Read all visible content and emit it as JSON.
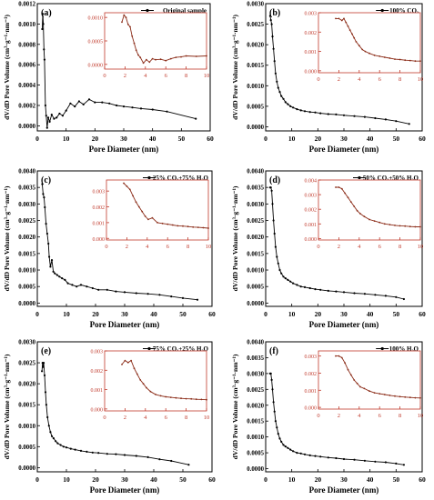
{
  "figure": {
    "shared_xlabel": "Pore Diameter (nm)",
    "shared_ylabel": "dV/dD Pore Volume (cm³·g⁻¹·nm⁻¹)"
  },
  "colors": {
    "main_series": "#000000",
    "inset_series": "#8b2c18",
    "inset_axes": "#c0392b"
  },
  "chart_data": [
    {
      "type": "line",
      "panel": "(a)",
      "legend": "Original sample",
      "legend_position": "top-right",
      "xlabel": "Pore Diameter (nm)",
      "ylabel": "dV/dD Pore Volume (cm³·g⁻¹·nm⁻¹)",
      "xlim": [
        0,
        60
      ],
      "ylim": [
        -5e-05,
        0.0012
      ],
      "xticks": [
        0,
        10,
        20,
        30,
        40,
        50,
        60
      ],
      "yticks": [
        0.0,
        0.0002,
        0.0004,
        0.0006,
        0.0008,
        0.001,
        0.0012
      ],
      "ytick_labels": [
        "0.0000",
        "0.0002",
        "0.0004",
        "0.0006",
        "0.0008",
        "0.0010",
        "0.0012"
      ],
      "series": [
        {
          "x": [
            1.7,
            1.9,
            2.1,
            2.3,
            2.5,
            2.8,
            3.1,
            3.4,
            3.8,
            4.3,
            5,
            5.8,
            6.7,
            7.7,
            8.8,
            10,
            11.5,
            13,
            14.5,
            16,
            18,
            20,
            22.5,
            25,
            27.5,
            30,
            33,
            36,
            40,
            45,
            55
          ],
          "y": [
            0.00095,
            0.0011,
            0.001,
            0.00075,
            0.00065,
            0.0002,
            0.0001,
            -2e-05,
            8e-05,
            4e-05,
            0.00011,
            7e-05,
            8e-05,
            0.00012,
            0.0001,
            0.00015,
            0.00022,
            0.00019,
            0.00024,
            0.00021,
            0.00026,
            0.00023,
            0.00023,
            0.00022,
            0.0002,
            0.00019,
            0.00018,
            0.00017,
            0.00016,
            0.00014,
            7e-05
          ]
        }
      ],
      "inset": {
        "xlim": [
          0,
          10
        ],
        "ylim": [
          -0.0001,
          0.0011
        ],
        "xticks": [
          0,
          2,
          4,
          6,
          8,
          10
        ],
        "yticks": [
          0.0,
          0.0005,
          0.001
        ],
        "ytick_labels": [
          "0.0000",
          "0.0005",
          "0.0010"
        ],
        "x": [
          1.7,
          1.9,
          2.1,
          2.3,
          2.5,
          2.7,
          2.9,
          3.1,
          3.3,
          3.5,
          3.8,
          4.1,
          4.4,
          4.7,
          5.0,
          5.5,
          6.0,
          6.5,
          7.0,
          7.5,
          8.0,
          9.0,
          10.0
        ],
        "y": [
          0.0009,
          0.00105,
          0.001,
          0.00085,
          0.0008,
          0.0006,
          0.00045,
          0.0003,
          0.0002,
          0.00015,
          3e-05,
          0.0001,
          5e-05,
          0.00012,
          0.0001,
          0.00011,
          8e-05,
          0.00012,
          0.00015,
          0.00016,
          0.00018,
          0.00017,
          0.00018
        ]
      }
    },
    {
      "type": "line",
      "panel": "(b)",
      "legend": "100% CO₂",
      "legend_position": "top-right",
      "xlabel": "Pore Diameter (nm)",
      "ylabel": "dV/dD Pore Volume (cm³·g⁻¹·nm⁻¹)",
      "xlim": [
        0,
        60
      ],
      "ylim": [
        -0.0001,
        0.003
      ],
      "xticks": [
        0,
        10,
        20,
        30,
        40,
        50,
        60
      ],
      "yticks": [
        0.0,
        0.0005,
        0.001,
        0.0015,
        0.002,
        0.0025,
        0.003
      ],
      "ytick_labels": [
        "0.0000",
        "0.0005",
        "0.0010",
        "0.0015",
        "0.0020",
        "0.0025",
        "0.0030"
      ],
      "series": [
        {
          "x": [
            1.7,
            2.0,
            2.3,
            2.6,
            3.0,
            3.4,
            3.8,
            4.3,
            4.8,
            5.4,
            6.0,
            6.8,
            7.6,
            8.5,
            9.5,
            10.5,
            12,
            13.5,
            15,
            17,
            19,
            21,
            24,
            27,
            30,
            34,
            38,
            42,
            46,
            50,
            55
          ],
          "y": [
            0.0027,
            0.0026,
            0.0025,
            0.0022,
            0.0019,
            0.0016,
            0.0013,
            0.0011,
            0.00095,
            0.00085,
            0.00075,
            0.00068,
            0.0006,
            0.00055,
            0.0005,
            0.00047,
            0.00043,
            0.0004,
            0.00038,
            0.00036,
            0.00035,
            0.00033,
            0.00031,
            0.0003,
            0.00028,
            0.00026,
            0.00024,
            0.00021,
            0.00018,
            0.00014,
            7e-05
          ]
        }
      ],
      "inset": {
        "xlim": [
          0,
          10
        ],
        "ylim": [
          -0.0001,
          0.003
        ],
        "xticks": [
          0,
          2,
          4,
          6,
          8,
          10
        ],
        "yticks": [
          0.0,
          0.001,
          0.002,
          0.003
        ],
        "ytick_labels": [
          "0.000",
          "0.001",
          "0.002",
          "0.003"
        ],
        "x": [
          1.7,
          2.0,
          2.3,
          2.5,
          2.7,
          2.9,
          3.1,
          3.3,
          3.5,
          3.7,
          4.0,
          4.3,
          4.6,
          5.0,
          5.5,
          6.0,
          6.5,
          7.0,
          7.5,
          8.0,
          8.5,
          9.0,
          9.5,
          10.0
        ],
        "y": [
          0.0027,
          0.0027,
          0.0026,
          0.0027,
          0.0025,
          0.0023,
          0.0021,
          0.0019,
          0.0017,
          0.0015,
          0.0013,
          0.0011,
          0.001,
          0.0009,
          0.0008,
          0.00075,
          0.0007,
          0.00065,
          0.0006,
          0.00058,
          0.00055,
          0.00053,
          0.0005,
          0.0005
        ]
      }
    },
    {
      "type": "line",
      "panel": "(c)",
      "legend": "25% CO₂+75% H₂O",
      "legend_position": "top-right",
      "xlabel": "Pore Diameter (nm)",
      "ylabel": "dV/dD Pore Volume (cm³·g⁻¹·nm⁻¹)",
      "xlim": [
        0,
        60
      ],
      "ylim": [
        -0.0001,
        0.004
      ],
      "xticks": [
        0,
        10,
        20,
        30,
        40,
        50,
        60
      ],
      "yticks": [
        0.0,
        0.0005,
        0.001,
        0.0015,
        0.002,
        0.0025,
        0.003,
        0.0035,
        0.004
      ],
      "ytick_labels": [
        "0.0000",
        "0.0005",
        "0.0010",
        "0.0015",
        "0.0020",
        "0.0025",
        "0.0030",
        "0.0035",
        "0.0040"
      ],
      "series": [
        {
          "x": [
            1.7,
            2.0,
            2.3,
            2.6,
            3.0,
            3.4,
            3.8,
            4.1,
            4.5,
            5.0,
            5.5,
            6.0,
            6.8,
            7.6,
            8.5,
            9.5,
            10.5,
            12,
            13.5,
            15,
            17,
            19,
            21,
            24,
            27,
            30,
            34,
            38,
            42,
            46,
            50,
            55
          ],
          "y": [
            0.0036,
            0.0033,
            0.0032,
            0.0029,
            0.0024,
            0.0021,
            0.0018,
            0.0014,
            0.0011,
            0.0013,
            0.00095,
            0.0009,
            0.00085,
            0.0008,
            0.00075,
            0.0007,
            0.0006,
            0.00055,
            0.0005,
            0.00055,
            0.0005,
            0.00045,
            0.0004,
            0.0004,
            0.00035,
            0.00033,
            0.0003,
            0.00028,
            0.00025,
            0.0002,
            0.00015,
            0.0001
          ]
        }
      ],
      "inset": {
        "xlim": [
          0,
          10
        ],
        "ylim": [
          -0.0001,
          0.0037
        ],
        "xticks": [
          0,
          2,
          4,
          6,
          8,
          10
        ],
        "yticks": [
          0.0,
          0.001,
          0.002,
          0.003
        ],
        "ytick_labels": [
          "0.000",
          "0.001",
          "0.002",
          "0.003"
        ],
        "x": [
          1.7,
          2.0,
          2.3,
          2.6,
          2.9,
          3.2,
          3.5,
          3.8,
          4.1,
          4.5,
          5.0,
          5.5,
          6.0,
          6.5,
          7.0,
          7.5,
          8.0,
          8.5,
          9.0,
          9.5,
          10.0
        ],
        "y": [
          0.0035,
          0.0033,
          0.0031,
          0.0027,
          0.0023,
          0.002,
          0.0017,
          0.0014,
          0.0012,
          0.0013,
          0.001,
          0.00095,
          0.0009,
          0.00085,
          0.0008,
          0.00078,
          0.00075,
          0.00072,
          0.0007,
          0.00068,
          0.00065
        ]
      }
    },
    {
      "type": "line",
      "panel": "(d)",
      "legend": "50% CO₂+50% H₂O",
      "legend_position": "top-right",
      "xlabel": "Pore Diameter (nm)",
      "ylabel": "dV/dD Pore Volume (cm³·g⁻¹·nm⁻¹)",
      "xlim": [
        0,
        60
      ],
      "ylim": [
        -0.0001,
        0.004
      ],
      "xticks": [
        0,
        10,
        20,
        30,
        40,
        50,
        60
      ],
      "yticks": [
        0.0,
        0.0005,
        0.001,
        0.0015,
        0.002,
        0.0025,
        0.003,
        0.0035,
        0.004
      ],
      "ytick_labels": [
        "0.0000",
        "0.0005",
        "0.0010",
        "0.0015",
        "0.0020",
        "0.0025",
        "0.0030",
        "0.0035",
        "0.0040"
      ],
      "series": [
        {
          "x": [
            1.7,
            2.0,
            2.3,
            2.6,
            3.0,
            3.4,
            3.8,
            4.3,
            4.8,
            5.4,
            6.0,
            6.8,
            7.6,
            8.5,
            9.5,
            10.5,
            12,
            13.5,
            15,
            17,
            19,
            21,
            24,
            27,
            30,
            34,
            38,
            42,
            46,
            50,
            53
          ],
          "y": [
            0.0035,
            0.0035,
            0.0034,
            0.003,
            0.0025,
            0.0021,
            0.0017,
            0.0014,
            0.0012,
            0.001,
            0.0009,
            0.0008,
            0.00075,
            0.0007,
            0.00065,
            0.0006,
            0.00055,
            0.0005,
            0.00048,
            0.00045,
            0.00042,
            0.0004,
            0.00037,
            0.00035,
            0.00033,
            0.0003,
            0.00028,
            0.00025,
            0.00022,
            0.00018,
            0.00012
          ]
        }
      ],
      "inset": {
        "xlim": [
          0,
          10
        ],
        "ylim": [
          -0.0001,
          0.004
        ],
        "xticks": [
          0,
          2,
          4,
          6,
          8,
          10
        ],
        "yticks": [
          0.0,
          0.001,
          0.002,
          0.003,
          0.004
        ],
        "ytick_labels": [
          "0.000",
          "0.001",
          "0.002",
          "0.003",
          "0.004"
        ],
        "x": [
          1.7,
          2.0,
          2.3,
          2.6,
          2.9,
          3.2,
          3.5,
          3.8,
          4.1,
          4.5,
          5.0,
          5.5,
          6.0,
          6.5,
          7.0,
          7.5,
          8.0,
          8.5,
          9.0,
          9.5,
          10.0
        ],
        "y": [
          0.0035,
          0.0035,
          0.0034,
          0.0031,
          0.0028,
          0.0025,
          0.0022,
          0.0019,
          0.0017,
          0.0015,
          0.0013,
          0.0012,
          0.0011,
          0.001,
          0.00095,
          0.0009,
          0.00087,
          0.00085,
          0.00082,
          0.0008,
          0.0008
        ]
      }
    },
    {
      "type": "line",
      "panel": "(e)",
      "legend": "75% CO₂+25% H₂O",
      "legend_position": "top-right",
      "xlabel": "Pore Diameter (nm)",
      "ylabel": "dV/dD Pore Volume (cm³·g⁻¹·nm⁻¹)",
      "xlim": [
        0,
        60
      ],
      "ylim": [
        -0.0001,
        0.003
      ],
      "xticks": [
        0,
        10,
        20,
        30,
        40,
        50,
        60
      ],
      "yticks": [
        0.0,
        0.0005,
        0.001,
        0.0015,
        0.002,
        0.0025,
        0.003
      ],
      "ytick_labels": [
        "0.0000",
        "0.0005",
        "0.0010",
        "0.0015",
        "0.0020",
        "0.0025",
        "0.0030"
      ],
      "series": [
        {
          "x": [
            1.6,
            1.8,
            2.0,
            2.2,
            2.5,
            2.8,
            3.1,
            3.5,
            4.0,
            4.5,
            5.0,
            5.6,
            6.3,
            7.0,
            8.0,
            9.0,
            10,
            11.5,
            13,
            15,
            17,
            19,
            21,
            24,
            27,
            30,
            34,
            38,
            42,
            46,
            52
          ],
          "y": [
            0.0023,
            0.0025,
            0.0024,
            0.0025,
            0.0022,
            0.0018,
            0.0015,
            0.0012,
            0.001,
            0.00085,
            0.00075,
            0.0007,
            0.00063,
            0.00058,
            0.00054,
            0.0005,
            0.00048,
            0.00045,
            0.00043,
            0.0004,
            0.00038,
            0.00036,
            0.00035,
            0.00033,
            0.00032,
            0.0003,
            0.00028,
            0.00025,
            0.0002,
            0.00016,
            7e-05
          ]
        }
      ],
      "inset": {
        "xlim": [
          0,
          10
        ],
        "ylim": [
          -0.0001,
          0.003
        ],
        "xticks": [
          0,
          2,
          4,
          6,
          8,
          10
        ],
        "yticks": [
          0.0,
          0.001,
          0.002,
          0.003
        ],
        "ytick_labels": [
          "0.000",
          "0.001",
          "0.002",
          "0.003"
        ],
        "x": [
          1.7,
          2.0,
          2.3,
          2.6,
          2.9,
          3.2,
          3.5,
          3.8,
          4.1,
          4.5,
          5.0,
          5.5,
          6.0,
          6.5,
          7.0,
          7.5,
          8.0,
          8.5,
          9.0,
          9.5,
          10.0
        ],
        "y": [
          0.0023,
          0.0025,
          0.0024,
          0.0025,
          0.0021,
          0.0018,
          0.0015,
          0.0013,
          0.0011,
          0.0009,
          0.00075,
          0.00068,
          0.00063,
          0.0006,
          0.00057,
          0.00055,
          0.00053,
          0.00052,
          0.0005,
          0.00049,
          0.00048
        ]
      }
    },
    {
      "type": "line",
      "panel": "(f)",
      "legend": "100% H₂O",
      "legend_position": "top-right",
      "xlabel": "Pore Diameter (nm)",
      "ylabel": "dV/dD Pore Volume (cm³·g⁻¹·nm⁻¹)",
      "xlim": [
        0,
        60
      ],
      "ylim": [
        -0.0001,
        0.004
      ],
      "xticks": [
        0,
        10,
        20,
        30,
        40,
        50,
        60
      ],
      "yticks": [
        0.0,
        0.0005,
        0.001,
        0.0015,
        0.002,
        0.0025,
        0.003,
        0.0035,
        0.004
      ],
      "ytick_labels": [
        "0.0000",
        "0.0005",
        "0.0010",
        "0.0015",
        "0.0020",
        "0.0025",
        "0.0030",
        "0.0035",
        "0.0040"
      ],
      "series": [
        {
          "x": [
            1.7,
            2.0,
            2.3,
            2.6,
            3.0,
            3.4,
            3.8,
            4.3,
            4.8,
            5.4,
            6.0,
            6.8,
            7.6,
            8.5,
            9.5,
            10.5,
            12,
            13.5,
            15,
            17,
            19,
            21,
            24,
            27,
            30,
            34,
            38,
            42,
            46,
            50,
            53
          ],
          "y": [
            0.003,
            0.003,
            0.0028,
            0.0025,
            0.0021,
            0.0018,
            0.0015,
            0.0013,
            0.0011,
            0.00095,
            0.00085,
            0.00075,
            0.0007,
            0.00065,
            0.0006,
            0.00055,
            0.0005,
            0.00048,
            0.00045,
            0.00042,
            0.0004,
            0.00038,
            0.00035,
            0.00033,
            0.0003,
            0.00028,
            0.00025,
            0.00022,
            0.0002,
            0.00016,
            0.00012
          ]
        }
      ],
      "inset": {
        "xlim": [
          0,
          10
        ],
        "ylim": [
          -0.0001,
          0.0033
        ],
        "xticks": [
          0,
          2,
          4,
          6,
          8,
          10
        ],
        "yticks": [
          0.0,
          0.001,
          0.002,
          0.003
        ],
        "ytick_labels": [
          "0.000",
          "0.001",
          "0.002",
          "0.003"
        ],
        "x": [
          1.7,
          2.0,
          2.3,
          2.6,
          2.9,
          3.2,
          3.5,
          3.8,
          4.1,
          4.5,
          5.0,
          5.5,
          6.0,
          6.5,
          7.0,
          7.5,
          8.0,
          8.5,
          9.0,
          9.5,
          10.0
        ],
        "y": [
          0.003,
          0.003,
          0.0029,
          0.0026,
          0.0022,
          0.0019,
          0.0016,
          0.0014,
          0.0012,
          0.0011,
          0.00095,
          0.00085,
          0.0008,
          0.00075,
          0.0007,
          0.00066,
          0.00063,
          0.0006,
          0.00058,
          0.00056,
          0.00055
        ]
      }
    }
  ]
}
